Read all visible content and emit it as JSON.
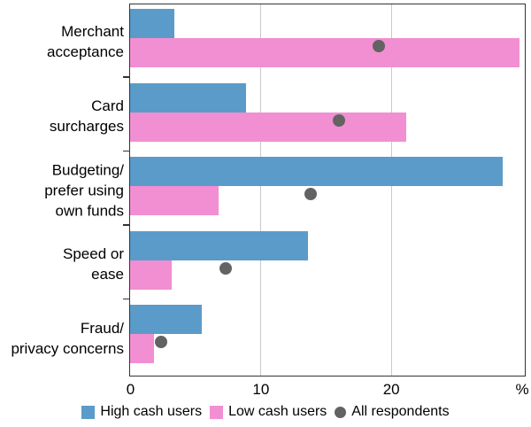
{
  "chart_data": {
    "type": "bar",
    "orientation": "horizontal",
    "title": "",
    "categories": [
      "Merchant acceptance",
      "Card surcharges",
      "Budgeting/ prefer using own funds",
      "Speed or ease",
      "Fraud/ privacy concerns"
    ],
    "category_label_lines": [
      [
        "Merchant",
        "acceptance"
      ],
      [
        "Card",
        "surcharges"
      ],
      [
        "Budgeting/",
        "prefer using",
        "own funds"
      ],
      [
        "Speed or",
        "ease"
      ],
      [
        "Fraud/",
        "privacy concerns"
      ]
    ],
    "series": [
      {
        "name": "High cash users",
        "marker": "bar",
        "color": "#5B9BC9",
        "values": [
          3.4,
          8.9,
          28.5,
          13.6,
          5.5
        ]
      },
      {
        "name": "Low cash users",
        "marker": "bar",
        "color": "#F18FD2",
        "values": [
          29.8,
          21.1,
          6.8,
          3.2,
          1.8
        ]
      },
      {
        "name": "All respondents",
        "marker": "dot",
        "color": "#636363",
        "values": [
          19,
          16,
          13.8,
          7.3,
          2.4
        ]
      }
    ],
    "xlim": [
      0,
      30.2
    ],
    "xticks": [
      0,
      10,
      20
    ],
    "axis_unit": "%",
    "grid": "vertical-at-10-and-20",
    "legend_position": "bottom-center",
    "frame_color": "#333333",
    "gridline_color": "#c9c9c9"
  }
}
